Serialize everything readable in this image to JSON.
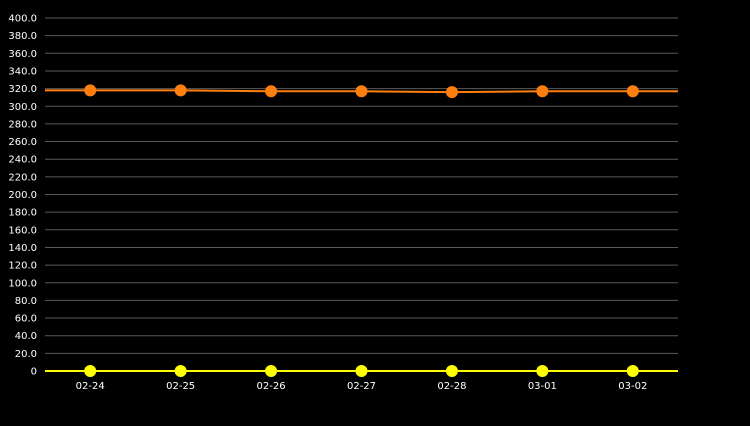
{
  "chart_data": {
    "type": "line",
    "title": "",
    "xlabel": "",
    "ylabel": "",
    "categories": [
      "02-24",
      "02-25",
      "02-26",
      "02-27",
      "02-28",
      "03-01",
      "03-02"
    ],
    "ylim": [
      0,
      400
    ],
    "y_ticks": [
      0,
      20,
      40,
      60,
      80,
      100,
      120,
      140,
      160,
      180,
      200,
      220,
      240,
      260,
      280,
      300,
      320,
      340,
      360,
      380,
      400
    ],
    "y_tick_labels": [
      "0",
      "20.0",
      "40.0",
      "60.0",
      "80.0",
      "100.0",
      "120.0",
      "140.0",
      "160.0",
      "180.0",
      "200.0",
      "220.0",
      "240.0",
      "260.0",
      "280.0",
      "300.0",
      "320.0",
      "340.0",
      "360.0",
      "380.0",
      "400.0"
    ],
    "grid": true,
    "legend": "none",
    "series": [
      {
        "color": "#ff7f0e",
        "values": [
          318,
          318,
          317,
          317,
          316,
          317,
          317
        ]
      },
      {
        "color": "#ffff00",
        "values": [
          0,
          0,
          0,
          0,
          0,
          0,
          0
        ]
      }
    ],
    "colors": {
      "background": "#000000",
      "grid": "#5a5a5a",
      "text": "#ffffff"
    }
  }
}
